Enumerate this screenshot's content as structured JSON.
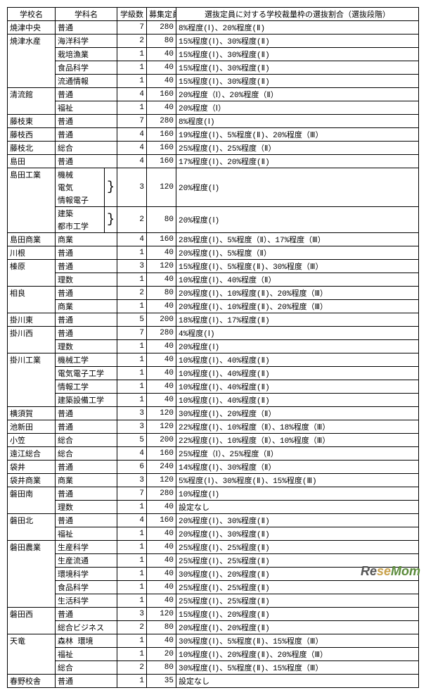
{
  "headers": {
    "school": "学校名",
    "dept": "学科名",
    "classes": "学級数",
    "capacity": "募集定員",
    "ratio": "選抜定員に対する学校裁量枠の選抜割合（選抜段階）"
  },
  "rows": [
    {
      "school": "焼津中央",
      "dept": "普通",
      "classes": "7",
      "capacity": "280",
      "ratio": "8%程度(Ⅰ)、20%程度(Ⅱ)"
    },
    {
      "school": "焼津水産",
      "dept": "海洋科学",
      "classes": "2",
      "capacity": "80",
      "ratio": "15%程度(Ⅰ)、30%程度(Ⅱ)"
    },
    {
      "school": "",
      "dept": "栽培漁業",
      "classes": "1",
      "capacity": "40",
      "ratio": "15%程度(Ⅰ)、30%程度(Ⅱ)"
    },
    {
      "school": "",
      "dept": "食品科学",
      "classes": "1",
      "capacity": "40",
      "ratio": "15%程度(Ⅰ)、30%程度(Ⅱ)"
    },
    {
      "school": "",
      "dept": "流通情報",
      "classes": "1",
      "capacity": "40",
      "ratio": "15%程度(Ⅰ)、30%程度(Ⅱ)"
    },
    {
      "school": "清流館",
      "dept": "普通",
      "classes": "4",
      "capacity": "160",
      "ratio": "20%程度（Ⅰ）、20%程度（Ⅱ）"
    },
    {
      "school": "",
      "dept": "福祉",
      "classes": "1",
      "capacity": "40",
      "ratio": "20%程度（Ⅰ）"
    },
    {
      "school": "藤枝東",
      "dept": "普通",
      "classes": "7",
      "capacity": "280",
      "ratio": "8%程度(Ⅰ)"
    },
    {
      "school": "藤枝西",
      "dept": "普通",
      "classes": "4",
      "capacity": "160",
      "ratio": "19%程度(Ⅰ)、5%程度(Ⅱ)、20%程度（Ⅲ）"
    },
    {
      "school": "藤枝北",
      "dept": "総合",
      "classes": "4",
      "capacity": "160",
      "ratio": "25%程度(Ⅰ)、25%程度（Ⅱ）"
    },
    {
      "school": "島田",
      "dept": "普通",
      "classes": "4",
      "capacity": "160",
      "ratio": "17%程度(Ⅰ)、20%程度(Ⅱ)"
    },
    {
      "school": "島田工業",
      "dept": "機械",
      "classes": "",
      "capacity": "",
      "ratio": "",
      "bracket": true,
      "brows": 3,
      "bclasses": "3",
      "bcap": "120",
      "bratio": "20%程度(Ⅰ)"
    },
    {
      "school": "",
      "dept": "電気",
      "classes": "",
      "capacity": "",
      "ratio": "",
      "bracket_mid": true
    },
    {
      "school": "",
      "dept": "情報電子",
      "classes": "",
      "capacity": "",
      "ratio": "",
      "bracket_mid": true
    },
    {
      "school": "",
      "dept": "建築",
      "classes": "",
      "capacity": "",
      "ratio": "",
      "bracket": true,
      "brows": 2,
      "bclasses": "2",
      "bcap": "80",
      "bratio": "20%程度(Ⅰ)"
    },
    {
      "school": "",
      "dept": "都市工学",
      "classes": "",
      "capacity": "",
      "ratio": "",
      "bracket_mid": true
    },
    {
      "school": "島田商業",
      "dept": "商業",
      "classes": "4",
      "capacity": "160",
      "ratio": "28%程度(Ⅰ)、5%程度（Ⅱ）、17%程度（Ⅲ）"
    },
    {
      "school": "川根",
      "dept": "普通",
      "classes": "1",
      "capacity": "40",
      "ratio": "20%程度(Ⅰ)、5%程度（Ⅱ）"
    },
    {
      "school": "榛原",
      "dept": "普通",
      "classes": "3",
      "capacity": "120",
      "ratio": "15%程度(Ⅰ)、5%程度(Ⅱ)、30%程度（Ⅲ）"
    },
    {
      "school": "",
      "dept": "理数",
      "classes": "1",
      "capacity": "40",
      "ratio": "10%程度(Ⅰ)、40%程度（Ⅱ）"
    },
    {
      "school": "相良",
      "dept": "普通",
      "classes": "2",
      "capacity": "80",
      "ratio": "20%程度(Ⅰ)、10%程度(Ⅱ)、20%程度（Ⅲ）"
    },
    {
      "school": "",
      "dept": "商業",
      "classes": "1",
      "capacity": "40",
      "ratio": "20%程度(Ⅰ)、10%程度(Ⅱ)、20%程度（Ⅲ）"
    },
    {
      "school": "掛川東",
      "dept": "普通",
      "classes": "5",
      "capacity": "200",
      "ratio": "18%程度(Ⅰ)、17%程度(Ⅱ)"
    },
    {
      "school": "掛川西",
      "dept": "普通",
      "classes": "7",
      "capacity": "280",
      "ratio": "4%程度(Ⅰ)"
    },
    {
      "school": "",
      "dept": "理数",
      "classes": "1",
      "capacity": "40",
      "ratio": "20%程度(Ⅰ)"
    },
    {
      "school": "掛川工業",
      "dept": "機械工学",
      "classes": "1",
      "capacity": "40",
      "ratio": "10%程度(Ⅰ)、40%程度(Ⅱ)"
    },
    {
      "school": "",
      "dept": "電気電子工学",
      "classes": "1",
      "capacity": "40",
      "ratio": "10%程度(Ⅰ)、40%程度(Ⅱ)"
    },
    {
      "school": "",
      "dept": "情報工学",
      "classes": "1",
      "capacity": "40",
      "ratio": "10%程度(Ⅰ)、40%程度(Ⅱ)"
    },
    {
      "school": "",
      "dept": "建築設備工学",
      "classes": "1",
      "capacity": "40",
      "ratio": "10%程度(Ⅰ)、40%程度(Ⅱ)"
    },
    {
      "school": "横須賀",
      "dept": "普通",
      "classes": "3",
      "capacity": "120",
      "ratio": "30%程度(Ⅰ)、20%程度（Ⅱ）"
    },
    {
      "school": "池新田",
      "dept": "普通",
      "classes": "3",
      "capacity": "120",
      "ratio": "22%程度(Ⅰ)、10%程度（Ⅱ）、18%程度（Ⅲ）"
    },
    {
      "school": "小笠",
      "dept": "総合",
      "classes": "5",
      "capacity": "200",
      "ratio": "22%程度(Ⅰ)、10%程度（Ⅱ）、10%程度（Ⅲ）"
    },
    {
      "school": "遠江総合",
      "dept": "総合",
      "classes": "4",
      "capacity": "160",
      "ratio": "25%程度（Ⅰ）、25%程度（Ⅱ）"
    },
    {
      "school": "袋井",
      "dept": "普通",
      "classes": "6",
      "capacity": "240",
      "ratio": "14%程度(Ⅰ)、30%程度（Ⅱ）"
    },
    {
      "school": "袋井商業",
      "dept": "商業",
      "classes": "3",
      "capacity": "120",
      "ratio": "5%程度(Ⅰ)、30%程度(Ⅱ)、15%程度(Ⅲ)"
    },
    {
      "school": "磐田南",
      "dept": "普通",
      "classes": "7",
      "capacity": "280",
      "ratio": "10%程度(Ⅰ)"
    },
    {
      "school": "",
      "dept": "理数",
      "classes": "1",
      "capacity": "40",
      "ratio": "設定なし"
    },
    {
      "school": "磐田北",
      "dept": "普通",
      "classes": "4",
      "capacity": "160",
      "ratio": "20%程度(Ⅰ)、30%程度(Ⅱ)"
    },
    {
      "school": "",
      "dept": "福祉",
      "classes": "1",
      "capacity": "40",
      "ratio": "20%程度(Ⅰ)、30%程度(Ⅱ)"
    },
    {
      "school": "磐田農業",
      "dept": "生産科学",
      "classes": "1",
      "capacity": "40",
      "ratio": "25%程度(Ⅰ)、25%程度(Ⅱ)"
    },
    {
      "school": "",
      "dept": "生産流通",
      "classes": "1",
      "capacity": "40",
      "ratio": "25%程度(Ⅰ)、25%程度(Ⅱ)"
    },
    {
      "school": "",
      "dept": "環境科学",
      "classes": "1",
      "capacity": "40",
      "ratio": "30%程度(Ⅰ)、20%程度(Ⅱ)"
    },
    {
      "school": "",
      "dept": "食品科学",
      "classes": "1",
      "capacity": "40",
      "ratio": "25%程度(Ⅰ)、25%程度(Ⅱ)"
    },
    {
      "school": "",
      "dept": "生活科学",
      "classes": "1",
      "capacity": "40",
      "ratio": "25%程度(Ⅰ)、25%程度(Ⅱ)"
    },
    {
      "school": "磐田西",
      "dept": "普通",
      "classes": "3",
      "capacity": "120",
      "ratio": "15%程度(Ⅰ)、20%程度(Ⅱ)"
    },
    {
      "school": "",
      "dept": "総合ビジネス",
      "classes": "2",
      "capacity": "80",
      "ratio": "20%程度(Ⅰ)、20%程度(Ⅱ)"
    },
    {
      "school": "天竜",
      "dept": "森林 環境",
      "classes": "1",
      "capacity": "40",
      "ratio": "30%程度(Ⅰ)、5%程度(Ⅱ)、15%程度（Ⅲ）"
    },
    {
      "school": "",
      "dept": "福祉",
      "classes": "1",
      "capacity": "20",
      "ratio": "10%程度(Ⅰ)、20%程度(Ⅱ)、20%程度（Ⅲ）"
    },
    {
      "school": "",
      "dept": "総合",
      "classes": "2",
      "capacity": "80",
      "ratio": "30%程度(Ⅰ)、5%程度(Ⅱ)、15%程度（Ⅲ）"
    },
    {
      "school": "春野校舎",
      "dept": "普通",
      "classes": "1",
      "capacity": "35",
      "ratio": "設定なし"
    }
  ],
  "watermark": {
    "re": "Re",
    "se": "se",
    "mom": "Mom"
  }
}
